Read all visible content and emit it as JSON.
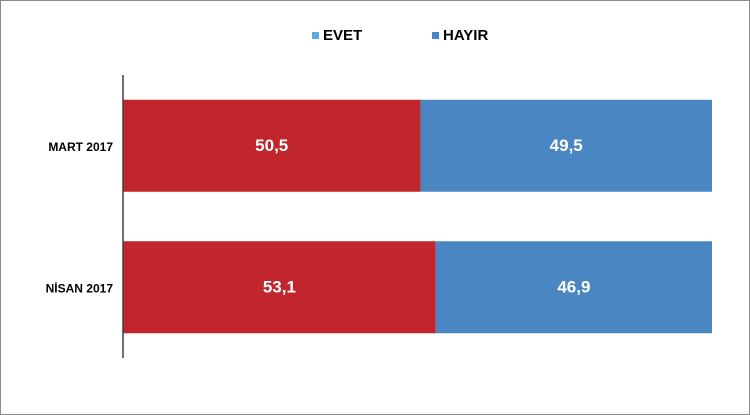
{
  "chart_data": {
    "type": "stacked-bar-horizontal",
    "categories": [
      "MART 2017",
      "NİSAN 2017"
    ],
    "series": [
      {
        "name": "EVET",
        "color": "#c0262b",
        "legend_color": "#5ea8de",
        "values": [
          50.5,
          53.1
        ],
        "value_labels": [
          "50,5",
          "53,1"
        ]
      },
      {
        "name": "HAYIR",
        "color": "#4a86c1",
        "legend_color": "#4a86c1",
        "values": [
          49.5,
          46.9
        ],
        "value_labels": [
          "49,5",
          "46,9"
        ]
      }
    ],
    "xlim": [
      0,
      100
    ],
    "legend": "top"
  }
}
